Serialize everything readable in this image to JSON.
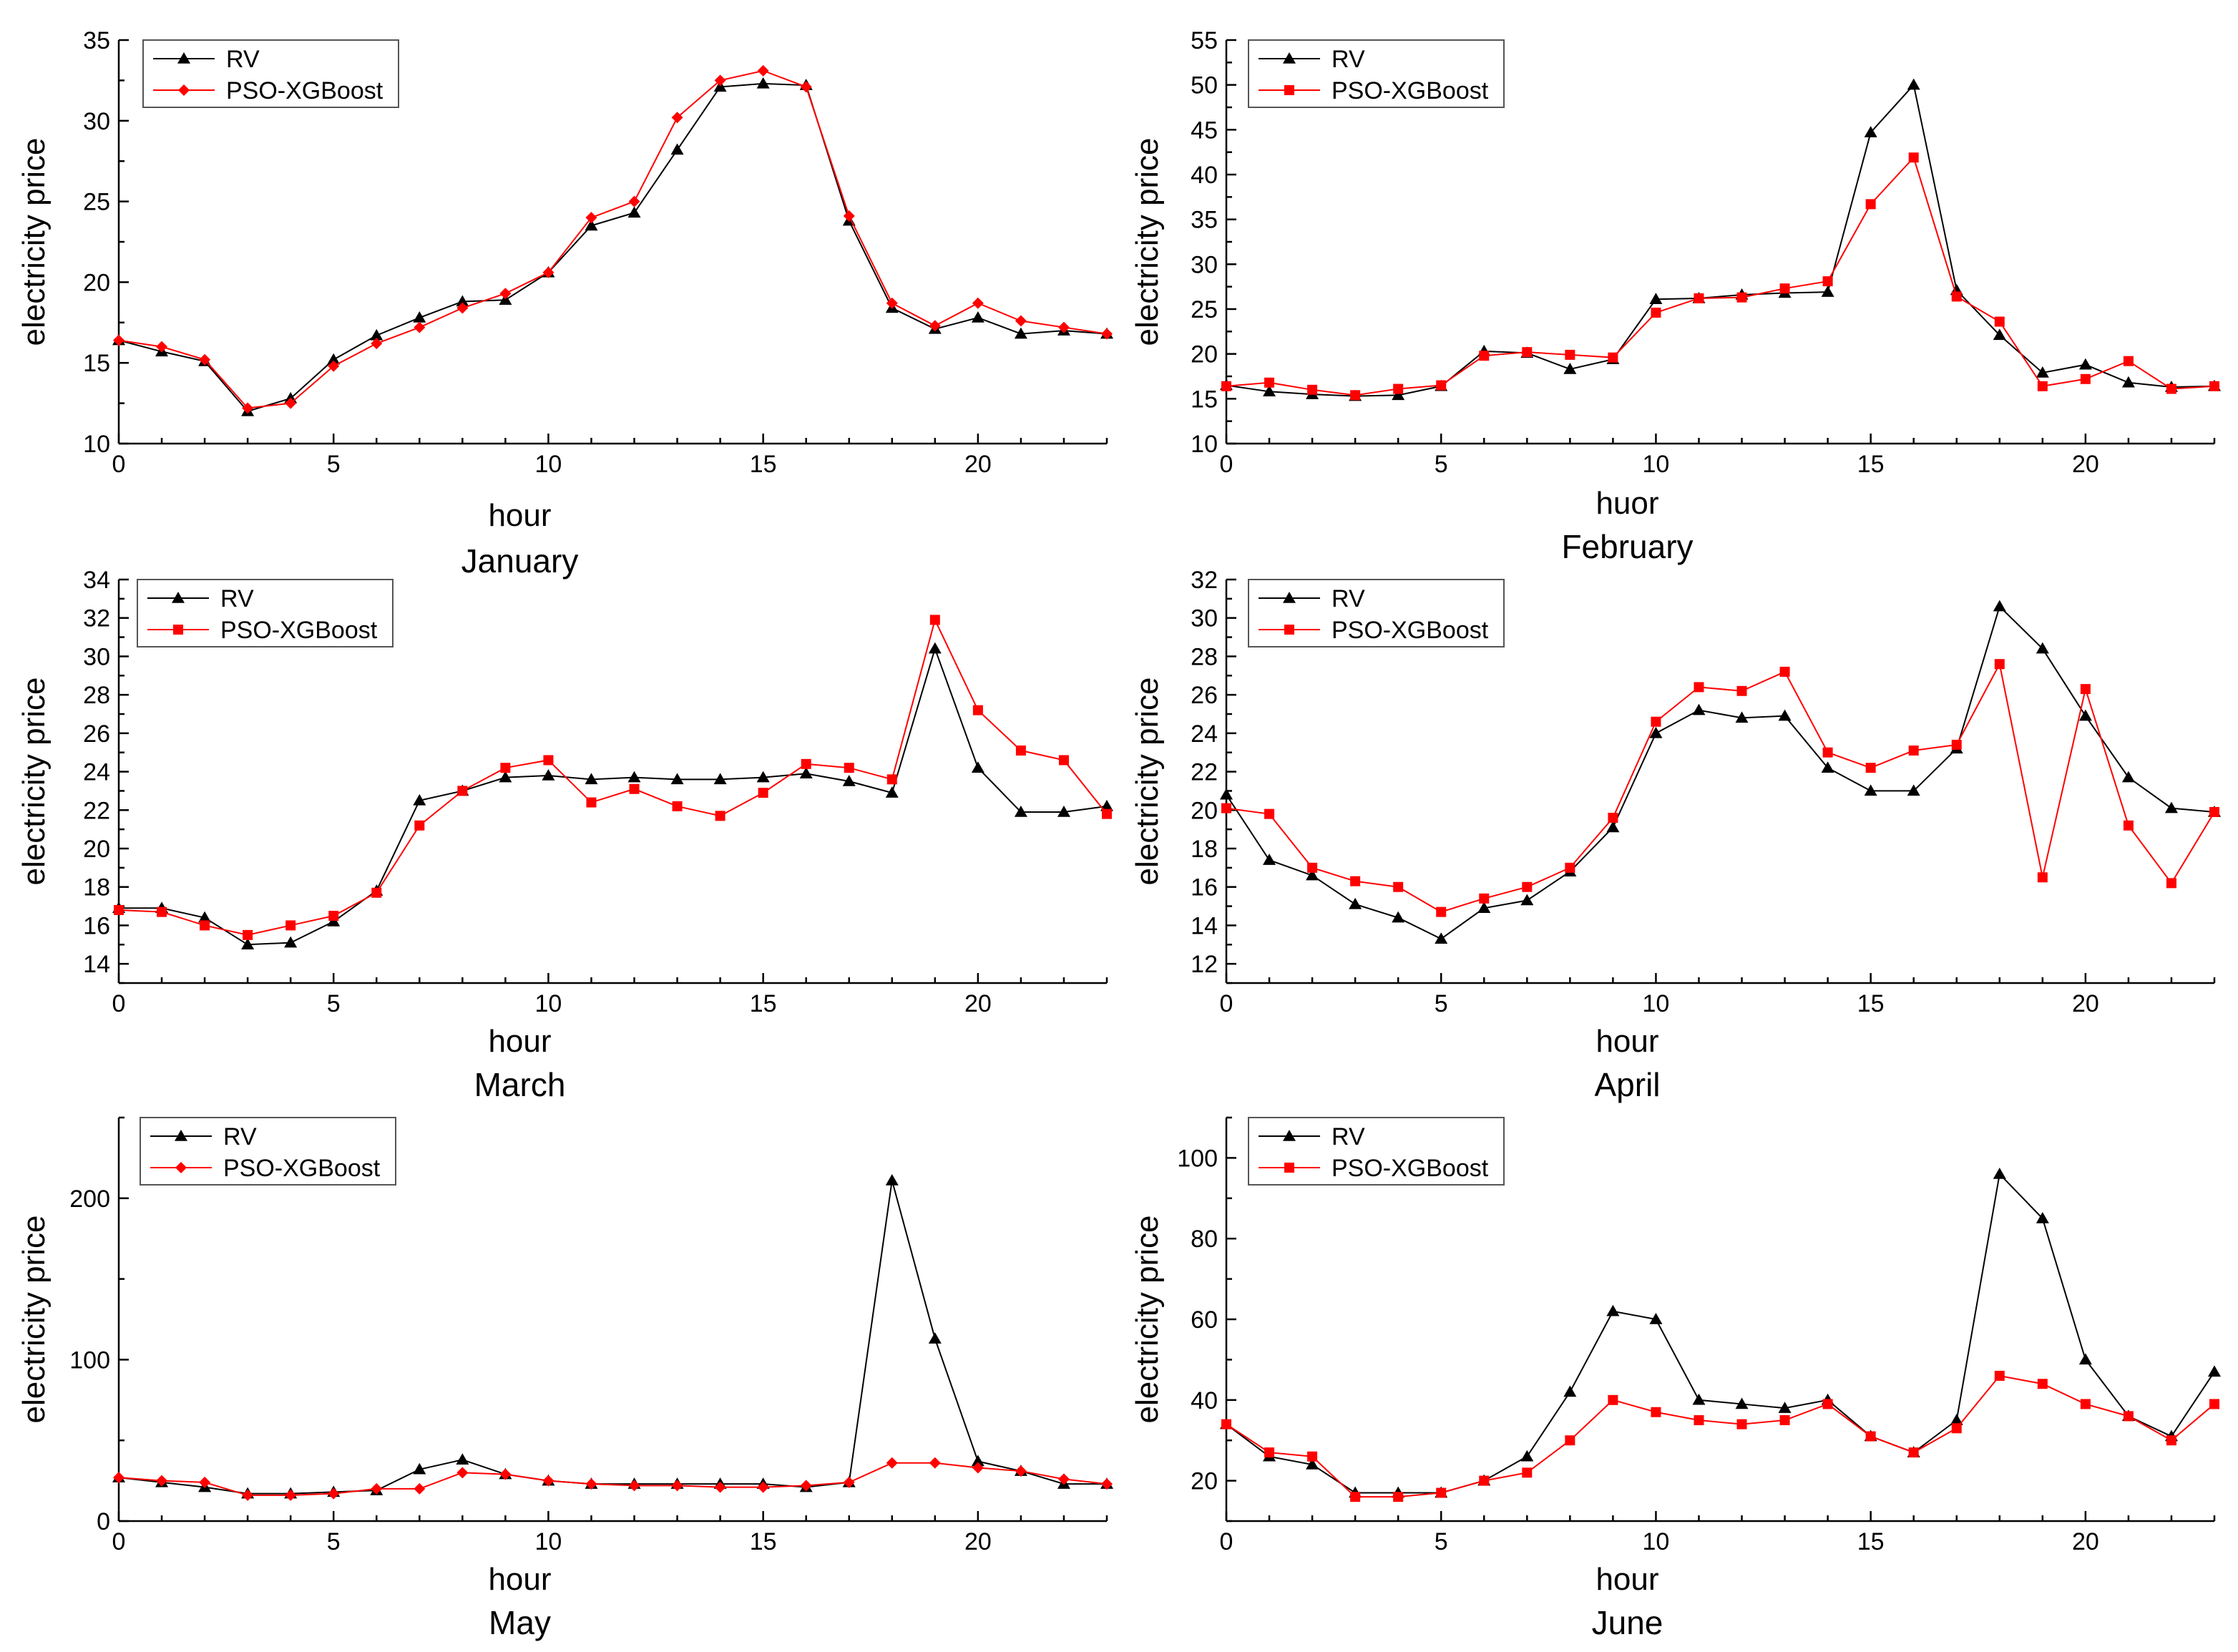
{
  "colors": {
    "rv": "#000000",
    "pred": "#ff0000"
  },
  "chart_data": [
    {
      "type": "line",
      "title": "January",
      "xlabel": "hour",
      "ylabel": "electricity price",
      "xlim": [
        0,
        23
      ],
      "ylim": [
        10,
        35
      ],
      "xticks": [
        0,
        5,
        10,
        15,
        20
      ],
      "yticks": [
        10,
        15,
        20,
        25,
        30,
        35
      ],
      "legend": "top-left",
      "x": [
        0,
        1,
        2,
        3,
        4,
        5,
        6,
        7,
        8,
        9,
        10,
        11,
        12,
        13,
        14,
        15,
        16,
        17,
        18,
        19,
        20,
        21,
        22,
        23
      ],
      "series": [
        {
          "name": "RV",
          "marker": "triangle",
          "values": [
            16.4,
            15.7,
            15.1,
            12.0,
            12.8,
            15.2,
            16.7,
            17.8,
            18.8,
            18.9,
            20.6,
            23.5,
            24.3,
            28.2,
            32.1,
            32.3,
            32.2,
            23.8,
            18.4,
            17.1,
            17.8,
            16.8,
            17.0,
            16.8
          ]
        },
        {
          "name": "PSO-XGBoost",
          "marker": "diamond",
          "values": [
            16.4,
            16.0,
            15.2,
            12.2,
            12.5,
            14.8,
            16.2,
            17.2,
            18.4,
            19.3,
            20.6,
            24.0,
            25.0,
            30.2,
            32.5,
            33.1,
            32.1,
            24.1,
            18.7,
            17.3,
            18.7,
            17.6,
            17.2,
            16.8
          ]
        }
      ]
    },
    {
      "type": "line",
      "title": "February",
      "xlabel": "huor",
      "ylabel": "electricity price",
      "xlim": [
        0,
        23
      ],
      "ylim": [
        10,
        55
      ],
      "xticks": [
        0,
        5,
        10,
        15,
        20
      ],
      "yticks": [
        10,
        15,
        20,
        25,
        30,
        35,
        40,
        45,
        50,
        55
      ],
      "legend": "top-left",
      "x": [
        0,
        1,
        2,
        3,
        4,
        5,
        6,
        7,
        8,
        9,
        10,
        11,
        12,
        13,
        14,
        15,
        16,
        17,
        18,
        19,
        20,
        21,
        22,
        23
      ],
      "series": [
        {
          "name": "RV",
          "marker": "triangle",
          "values": [
            16.5,
            15.8,
            15.5,
            15.3,
            15.4,
            16.4,
            20.3,
            20.1,
            18.3,
            19.4,
            26.1,
            26.2,
            26.6,
            26.8,
            26.9,
            44.7,
            50.0,
            27.1,
            22.1,
            17.9,
            18.8,
            16.8,
            16.3,
            16.4
          ]
        },
        {
          "name": "PSO-XGBoost",
          "marker": "square",
          "values": [
            16.4,
            16.8,
            16.0,
            15.4,
            16.1,
            16.5,
            19.8,
            20.2,
            19.9,
            19.6,
            24.6,
            26.2,
            26.3,
            27.3,
            28.1,
            36.7,
            41.9,
            26.4,
            23.6,
            16.4,
            17.2,
            19.2,
            16.1,
            16.4
          ]
        }
      ]
    },
    {
      "type": "line",
      "title": "March",
      "xlabel": "hour",
      "ylabel": "electricity price",
      "xlim": [
        0,
        23
      ],
      "ylim": [
        13,
        34
      ],
      "xticks": [
        0,
        5,
        10,
        15,
        20
      ],
      "yticks": [
        14,
        16,
        18,
        20,
        22,
        24,
        26,
        28,
        30,
        32,
        34
      ],
      "legend": "top-left",
      "x": [
        0,
        1,
        2,
        3,
        4,
        5,
        6,
        7,
        8,
        9,
        10,
        11,
        12,
        13,
        14,
        15,
        16,
        17,
        18,
        19,
        20,
        21,
        22,
        23
      ],
      "series": [
        {
          "name": "RV",
          "marker": "triangle",
          "values": [
            16.9,
            16.9,
            16.4,
            15.0,
            15.1,
            16.2,
            17.8,
            22.5,
            23.0,
            23.7,
            23.8,
            23.6,
            23.7,
            23.6,
            23.6,
            23.7,
            23.9,
            23.5,
            22.9,
            30.4,
            24.2,
            21.9,
            21.9,
            22.2
          ]
        },
        {
          "name": "PSO-XGBoost",
          "marker": "square",
          "values": [
            16.8,
            16.7,
            16.0,
            15.5,
            16.0,
            16.5,
            17.7,
            21.2,
            23.0,
            24.2,
            24.6,
            22.4,
            23.1,
            22.2,
            21.7,
            22.9,
            24.4,
            24.2,
            23.6,
            31.9,
            27.2,
            25.1,
            24.6,
            21.8
          ]
        }
      ]
    },
    {
      "type": "line",
      "title": "April",
      "xlabel": "hour",
      "ylabel": "electricity price",
      "xlim": [
        0,
        23
      ],
      "ylim": [
        11,
        32
      ],
      "xticks": [
        0,
        5,
        10,
        15,
        20
      ],
      "yticks": [
        12,
        14,
        16,
        18,
        20,
        22,
        24,
        26,
        28,
        30,
        32
      ],
      "legend": "top-left",
      "x": [
        0,
        1,
        2,
        3,
        4,
        5,
        6,
        7,
        8,
        9,
        10,
        11,
        12,
        13,
        14,
        15,
        16,
        17,
        18,
        19,
        20,
        21,
        22,
        23
      ],
      "series": [
        {
          "name": "RV",
          "marker": "triangle",
          "values": [
            20.8,
            17.4,
            16.6,
            15.1,
            14.4,
            13.3,
            14.9,
            15.3,
            16.8,
            19.1,
            24.0,
            25.2,
            24.8,
            24.9,
            22.2,
            21.0,
            21.0,
            23.2,
            30.6,
            28.4,
            24.9,
            21.7,
            20.1,
            19.9
          ]
        },
        {
          "name": "PSO-XGBoost",
          "marker": "square",
          "values": [
            20.1,
            19.8,
            17.0,
            16.3,
            16.0,
            14.7,
            15.4,
            16.0,
            17.0,
            19.6,
            24.6,
            26.4,
            26.2,
            27.2,
            23.0,
            22.2,
            23.1,
            23.4,
            27.6,
            16.5,
            26.3,
            19.2,
            16.2,
            19.9
          ]
        }
      ]
    },
    {
      "type": "line",
      "title": "May",
      "xlabel": "hour",
      "ylabel": "electricity price",
      "xlim": [
        0,
        23
      ],
      "ylim": [
        0,
        250
      ],
      "xticks": [
        0,
        5,
        10,
        15,
        20
      ],
      "yticks": [
        0,
        100,
        200
      ],
      "legend": "top-left",
      "x": [
        0,
        1,
        2,
        3,
        4,
        5,
        6,
        7,
        8,
        9,
        10,
        11,
        12,
        13,
        14,
        15,
        16,
        17,
        18,
        19,
        20,
        21,
        22,
        23
      ],
      "series": [
        {
          "name": "RV",
          "marker": "triangle",
          "values": [
            27,
            24,
            21,
            17,
            17,
            18,
            19,
            32,
            38,
            29,
            25,
            23,
            23,
            23,
            23,
            23,
            21,
            24,
            211,
            113,
            37,
            31,
            23,
            23
          ]
        },
        {
          "name": "PSO-XGBoost",
          "marker": "diamond",
          "values": [
            27,
            25,
            24,
            16,
            16,
            17,
            20,
            20,
            30,
            29,
            25,
            23,
            22,
            22,
            21,
            21,
            22,
            24,
            36,
            36,
            33,
            31,
            26,
            23
          ]
        }
      ]
    },
    {
      "type": "line",
      "title": "June",
      "xlabel": "hour",
      "ylabel": "electricity price",
      "xlim": [
        0,
        23
      ],
      "ylim": [
        10,
        110
      ],
      "xticks": [
        0,
        5,
        10,
        15,
        20
      ],
      "yticks": [
        20,
        40,
        60,
        80,
        100
      ],
      "legend": "top-left",
      "x": [
        0,
        1,
        2,
        3,
        4,
        5,
        6,
        7,
        8,
        9,
        10,
        11,
        12,
        13,
        14,
        15,
        16,
        17,
        18,
        19,
        20,
        21,
        22,
        23
      ],
      "series": [
        {
          "name": "RV",
          "marker": "triangle",
          "values": [
            34,
            26,
            24,
            17,
            17,
            17,
            20,
            26,
            42,
            62,
            60,
            40,
            39,
            38,
            40,
            31,
            27,
            35,
            96,
            85,
            50,
            36,
            31,
            47
          ]
        },
        {
          "name": "PSO-XGBoost",
          "marker": "square",
          "values": [
            34,
            27,
            26,
            16,
            16,
            17,
            20,
            22,
            30,
            40,
            37,
            35,
            34,
            35,
            39,
            31,
            27,
            33,
            46,
            44,
            39,
            36,
            30,
            39
          ]
        }
      ]
    }
  ]
}
